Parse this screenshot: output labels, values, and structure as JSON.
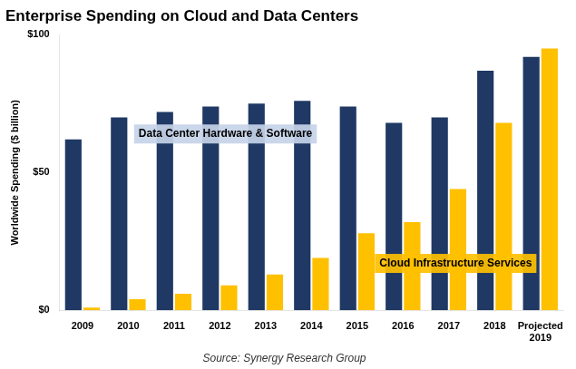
{
  "chart_data": {
    "type": "bar",
    "title": "Enterprise Spending on Cloud and Data Centers",
    "ylabel": "Worldwide Spending ($ billion)",
    "source": "Source: Synergy Research Group",
    "categories": [
      "2009",
      "2010",
      "2011",
      "2012",
      "2013",
      "2014",
      "2015",
      "2016",
      "2017",
      "2018",
      "Projected\n2019"
    ],
    "series": [
      {
        "name": "Data Center Hardware & Software",
        "color": "#1F3864",
        "values": [
          62,
          70,
          72,
          74,
          75,
          76,
          74,
          68,
          70,
          87,
          92
        ]
      },
      {
        "name": "Cloud Infrastructure Services",
        "color": "#FFC000",
        "values": [
          1,
          4,
          6,
          9,
          13,
          19,
          28,
          32,
          44,
          68,
          95
        ]
      }
    ],
    "annotations": [
      {
        "text": "Data Center Hardware & Software",
        "color": "#C5D3E8"
      },
      {
        "text": "Cloud Infrastructure Services",
        "color": "#FFC000"
      }
    ],
    "ylim": [
      0,
      100
    ],
    "yticks": [
      {
        "value": 0,
        "label": "$0"
      },
      {
        "value": 50,
        "label": "$50"
      },
      {
        "value": 100,
        "label": "$100"
      }
    ],
    "grid": false
  }
}
